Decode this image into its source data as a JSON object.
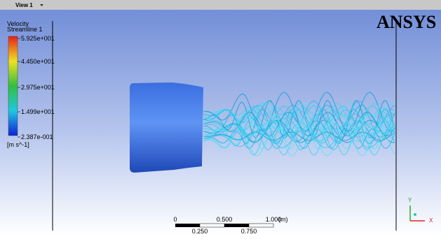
{
  "view": {
    "title": "View 1"
  },
  "legend": {
    "variable": "Velocity",
    "object": "Streamline 1",
    "labels": [
      "5.925e+001",
      "4.450e+001",
      "2.975e+001",
      "1.499e+001",
      "2.387e-001"
    ],
    "unit": "[m s^-1]"
  },
  "logo": "ANSYS",
  "scale": {
    "top_labels": [
      "0",
      "0.500",
      "1.000"
    ],
    "unit": "(m)",
    "bottom_labels": [
      "0.250",
      "0.750"
    ]
  },
  "axes": {
    "y": "Y",
    "x": "X"
  }
}
